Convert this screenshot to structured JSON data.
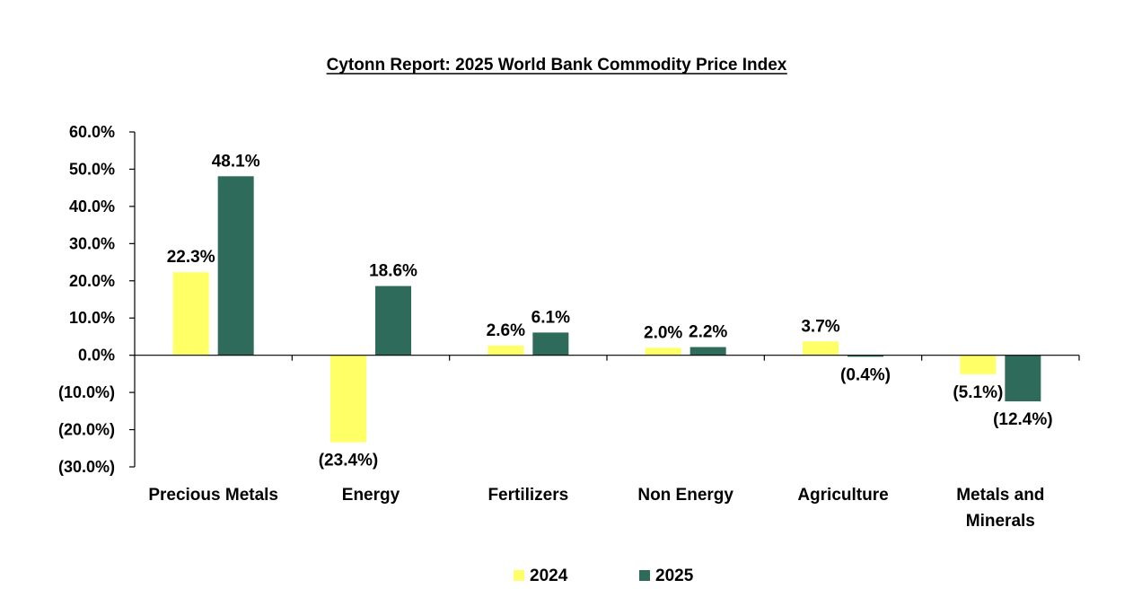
{
  "chart_data": {
    "type": "bar",
    "title": "Cytonn Report: 2025 World Bank Commodity Price Index",
    "xlabel": "",
    "ylabel": "",
    "ylim": [
      -30,
      60
    ],
    "yticks": [
      60,
      50,
      40,
      30,
      20,
      10,
      0,
      -10,
      -20,
      -30
    ],
    "ytick_labels": [
      "60.0%",
      "50.0%",
      "40.0%",
      "30.0%",
      "20.0%",
      "10.0%",
      "0.0%",
      "(10.0%)",
      "(20.0%)",
      "(30.0%)"
    ],
    "categories": [
      [
        "Precious Metals"
      ],
      [
        "Energy"
      ],
      [
        "Fertilizers"
      ],
      [
        "Non Energy"
      ],
      [
        "Agriculture"
      ],
      [
        "Metals and",
        "Minerals"
      ]
    ],
    "series": [
      {
        "name": "2024",
        "color": "#FFFF66",
        "values": [
          22.3,
          -23.4,
          2.6,
          2.0,
          3.7,
          -5.1
        ],
        "labels": [
          "22.3%",
          "(23.4%)",
          "2.6%",
          "2.0%",
          "3.7%",
          "(5.1%)"
        ]
      },
      {
        "name": "2025",
        "color": "#2E6B5B",
        "values": [
          48.1,
          18.6,
          6.1,
          2.2,
          -0.4,
          -12.4
        ],
        "labels": [
          "48.1%",
          "18.6%",
          "6.1%",
          "2.2%",
          "(0.4%)",
          "(12.4%)"
        ]
      }
    ],
    "grid": false,
    "legend_position": "bottom-center"
  }
}
